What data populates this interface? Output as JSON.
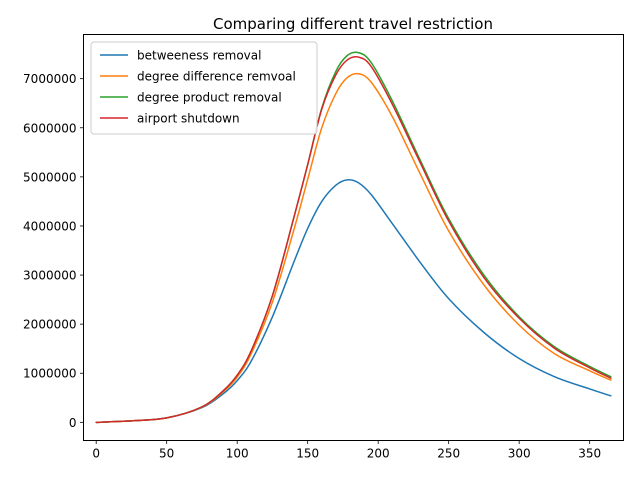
{
  "chart_data": {
    "type": "line",
    "title": "Comparing different travel restriction",
    "xlabel": "",
    "ylabel": "",
    "xlim": [
      -9,
      374
    ],
    "ylim": [
      -370000,
      7900000
    ],
    "xticks": [
      0,
      50,
      100,
      150,
      200,
      250,
      300,
      350
    ],
    "xtick_labels": [
      "0",
      "50",
      "100",
      "150",
      "200",
      "250",
      "300",
      "350"
    ],
    "yticks": [
      0,
      1000000,
      2000000,
      3000000,
      4000000,
      5000000,
      6000000,
      7000000
    ],
    "ytick_labels": [
      "0",
      "1000000",
      "2000000",
      "3000000",
      "4000000",
      "5000000",
      "6000000",
      "7000000"
    ],
    "grid": false,
    "legend_position": "top-left",
    "x": [
      0,
      25,
      50,
      75,
      90,
      100,
      110,
      125,
      140,
      150,
      160,
      170,
      178,
      186,
      195,
      210,
      230,
      250,
      275,
      300,
      325,
      350,
      365
    ],
    "series": [
      {
        "name": "betweeness removal",
        "color": "#1f77b4",
        "values": [
          0,
          30000,
          90000,
          300000,
          580000,
          850000,
          1250000,
          2150000,
          3250000,
          3950000,
          4500000,
          4830000,
          4940000,
          4880000,
          4640000,
          4050000,
          3250000,
          2520000,
          1830000,
          1300000,
          930000,
          680000,
          540000
        ]
      },
      {
        "name": "degree difference remvoal",
        "color": "#ff7f0e",
        "values": [
          0,
          30000,
          90000,
          310000,
          620000,
          920000,
          1400000,
          2450000,
          3900000,
          4950000,
          6000000,
          6700000,
          7020000,
          7100000,
          6930000,
          6230000,
          5050000,
          3900000,
          2800000,
          1980000,
          1400000,
          1050000,
          860000
        ]
      },
      {
        "name": "degree product removal",
        "color": "#2ca02c",
        "values": [
          0,
          30000,
          90000,
          315000,
          640000,
          960000,
          1460000,
          2580000,
          4150000,
          5250000,
          6400000,
          7150000,
          7470000,
          7530000,
          7330000,
          6550000,
          5330000,
          4150000,
          3000000,
          2150000,
          1540000,
          1140000,
          930000
        ]
      },
      {
        "name": "airport shutdown",
        "color": "#d62728",
        "values": [
          0,
          30000,
          90000,
          315000,
          640000,
          960000,
          1460000,
          2580000,
          4150000,
          5250000,
          6380000,
          7080000,
          7380000,
          7440000,
          7250000,
          6480000,
          5280000,
          4100000,
          2950000,
          2120000,
          1510000,
          1110000,
          900000
        ]
      }
    ]
  }
}
